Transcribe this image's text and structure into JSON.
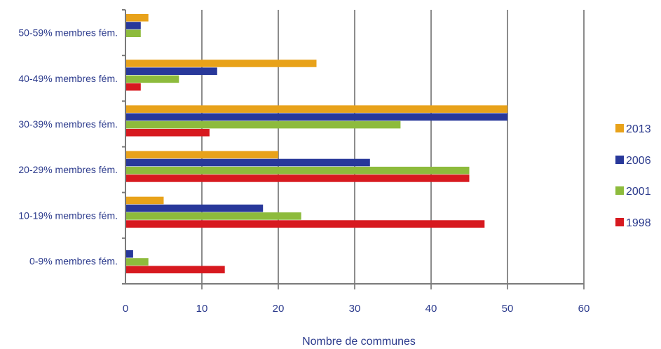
{
  "chart_data": {
    "type": "bar",
    "orientation": "horizontal",
    "categories": [
      "50-59% membres fém.",
      "40-49% membres fém.",
      "30-39% membres fém.",
      "20-29% membres fém.",
      "10-19% membres fém.",
      "0-9% membres fém."
    ],
    "series": [
      {
        "name": "2013",
        "color": "#e8a21a",
        "values": [
          3,
          25,
          50,
          20,
          5,
          0
        ]
      },
      {
        "name": "2006",
        "color": "#28389a",
        "values": [
          2,
          12,
          50,
          32,
          18,
          1
        ]
      },
      {
        "name": "2001",
        "color": "#8dbb3c",
        "values": [
          2,
          7,
          36,
          45,
          23,
          3
        ]
      },
      {
        "name": "1998",
        "color": "#d7191f",
        "values": [
          0,
          2,
          11,
          45,
          47,
          13
        ]
      }
    ],
    "xticks": [
      "0",
      "10",
      "20",
      "30",
      "40",
      "50",
      "60"
    ],
    "xlim": [
      0,
      60
    ],
    "xlabel": "Nombre de communes",
    "grid": "vertical",
    "legend_position": "right"
  }
}
